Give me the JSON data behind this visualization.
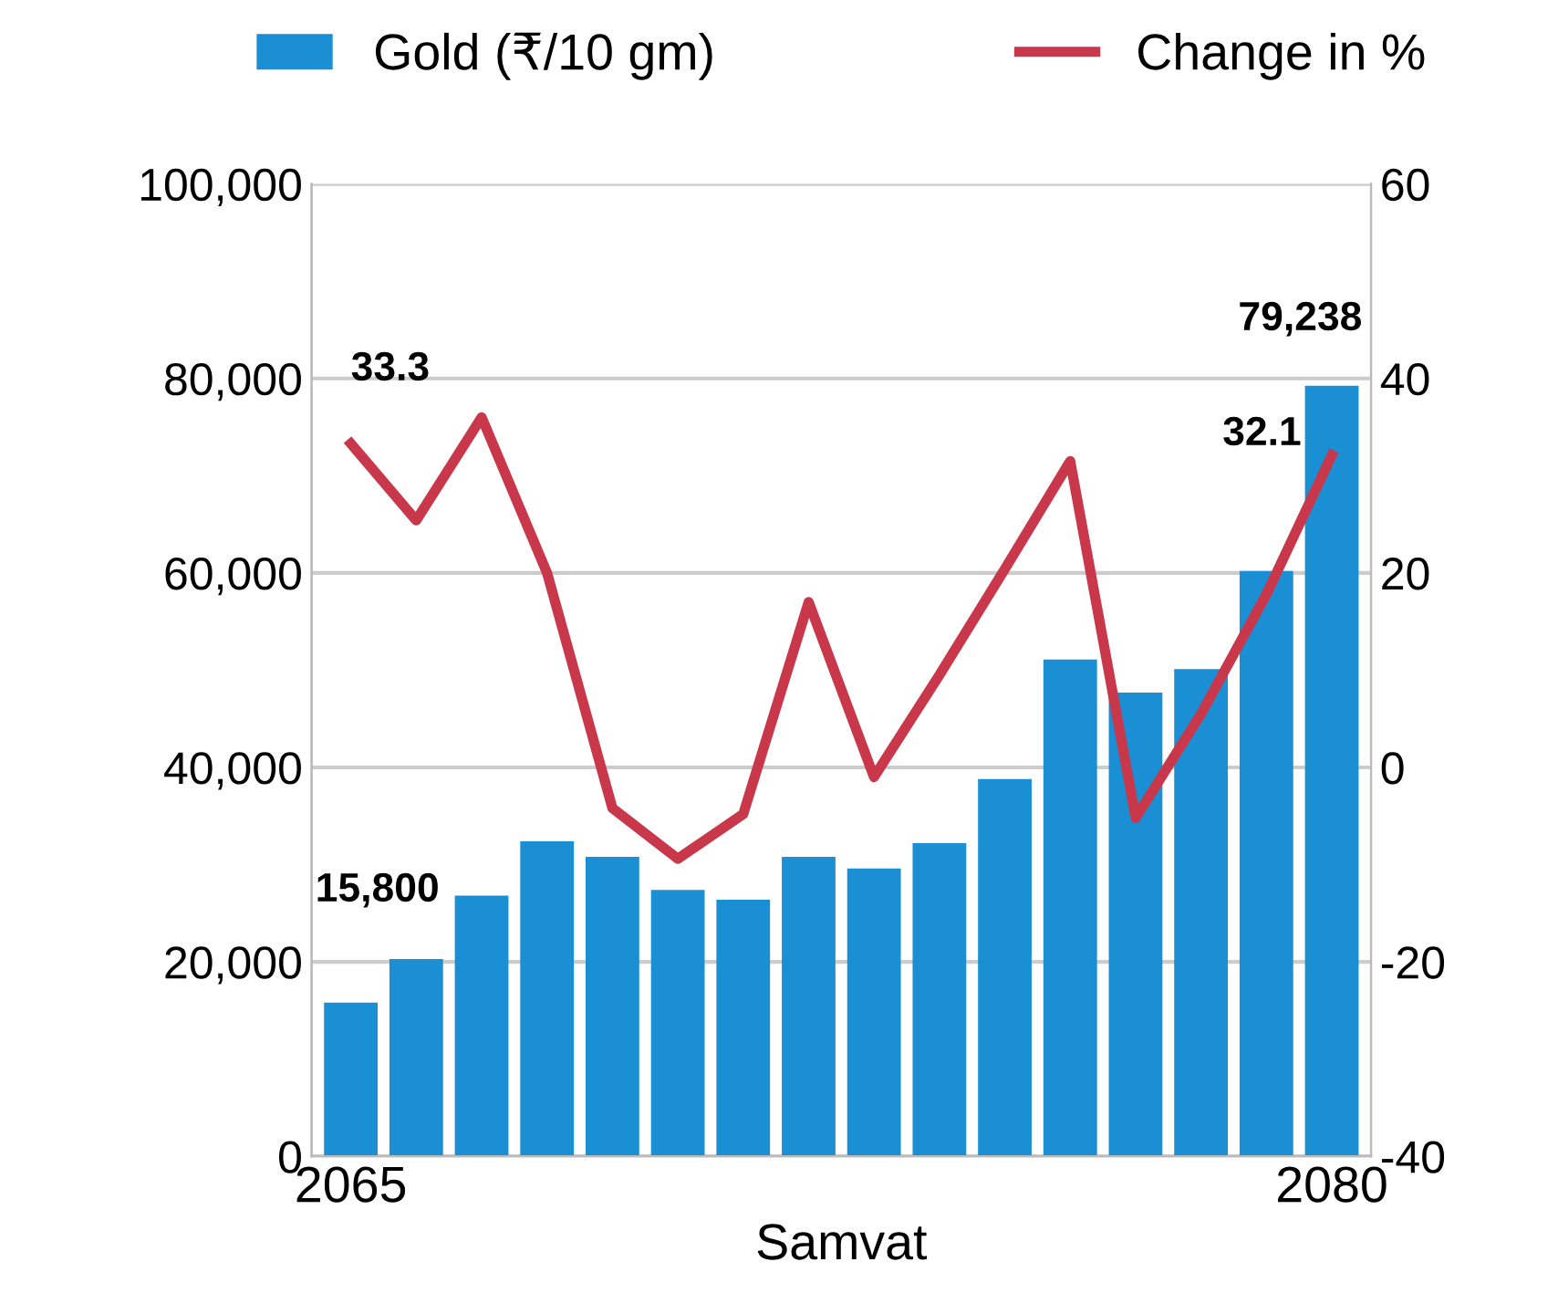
{
  "chart_data": {
    "type": "bar",
    "xlabel": "Samvat",
    "categories": [
      "2065",
      null,
      null,
      null,
      null,
      null,
      null,
      null,
      null,
      null,
      null,
      null,
      null,
      null,
      null,
      "2080"
    ],
    "series": [
      {
        "name": "Gold (₹/10 gm)",
        "color": "#1b8fd4",
        "values": [
          15800,
          20300,
          26800,
          32400,
          30800,
          27400,
          26400,
          30800,
          29600,
          32200,
          38800,
          51100,
          47700,
          50100,
          60200,
          79238
        ],
        "value_labels": [
          "15,800",
          null,
          null,
          null,
          null,
          null,
          null,
          null,
          null,
          null,
          null,
          null,
          null,
          null,
          null,
          "79,238"
        ]
      },
      {
        "name": "Change in %",
        "type": "line",
        "axis": "y2",
        "color": "#c8384a",
        "values": [
          33.3,
          25.4,
          36,
          20,
          -4.2,
          -9.4,
          -4.8,
          17,
          -1,
          9.5,
          20.4,
          31.5,
          -5.2,
          5.5,
          17.8,
          32.1
        ],
        "value_labels": [
          "33.3",
          null,
          null,
          null,
          null,
          null,
          null,
          null,
          null,
          null,
          null,
          null,
          null,
          null,
          null,
          "32.1"
        ]
      }
    ],
    "ylim": [
      0,
      100000
    ],
    "yticks": [
      {
        "value": 0,
        "label": "0"
      },
      {
        "value": 20000,
        "label": "20,000"
      },
      {
        "value": 40000,
        "label": "40,000"
      },
      {
        "value": 60000,
        "label": "60,000"
      },
      {
        "value": 80000,
        "label": "80,000"
      },
      {
        "value": 100000,
        "label": "100,000"
      }
    ],
    "y2lim": [
      -40,
      60
    ],
    "y2ticks": [
      -40,
      -20,
      0,
      20,
      40,
      60
    ],
    "grid": "y",
    "legend": "top",
    "line_style": "solid"
  }
}
